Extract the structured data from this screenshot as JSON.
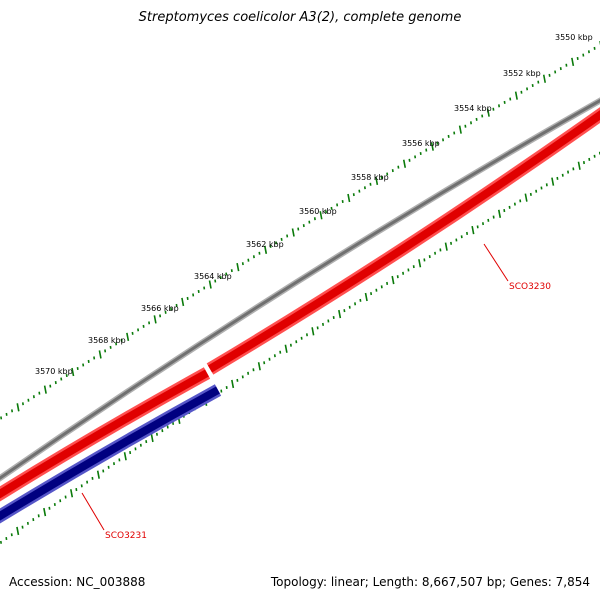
{
  "title": "Streptomyces coelicolor A3(2), complete genome",
  "ticks": [
    {
      "label": "3550 kbp"
    },
    {
      "label": "3552 kbp"
    },
    {
      "label": "3554 kbp"
    },
    {
      "label": "3556 kbp"
    },
    {
      "label": "3558 kbp"
    },
    {
      "label": "3560 kbp"
    },
    {
      "label": "3562 kbp"
    },
    {
      "label": "3564 kbp"
    },
    {
      "label": "3566 kbp"
    },
    {
      "label": "3568 kbp"
    },
    {
      "label": "3570 kbp"
    }
  ],
  "genes": [
    {
      "name": "SCO3230",
      "color": "#e00000"
    },
    {
      "name": "SCO3231",
      "color": "#000080"
    }
  ],
  "colors": {
    "backbone": "#8a8a8a",
    "forward_gene": "#e00000",
    "reverse_gene": "#000080",
    "tick": "#0a7a0a",
    "label_line": "#e00000"
  },
  "footer": {
    "accession": "Accession: NC_003888",
    "summary": "Topology: linear; Length: 8,667,507 bp; Genes: 7,854"
  }
}
